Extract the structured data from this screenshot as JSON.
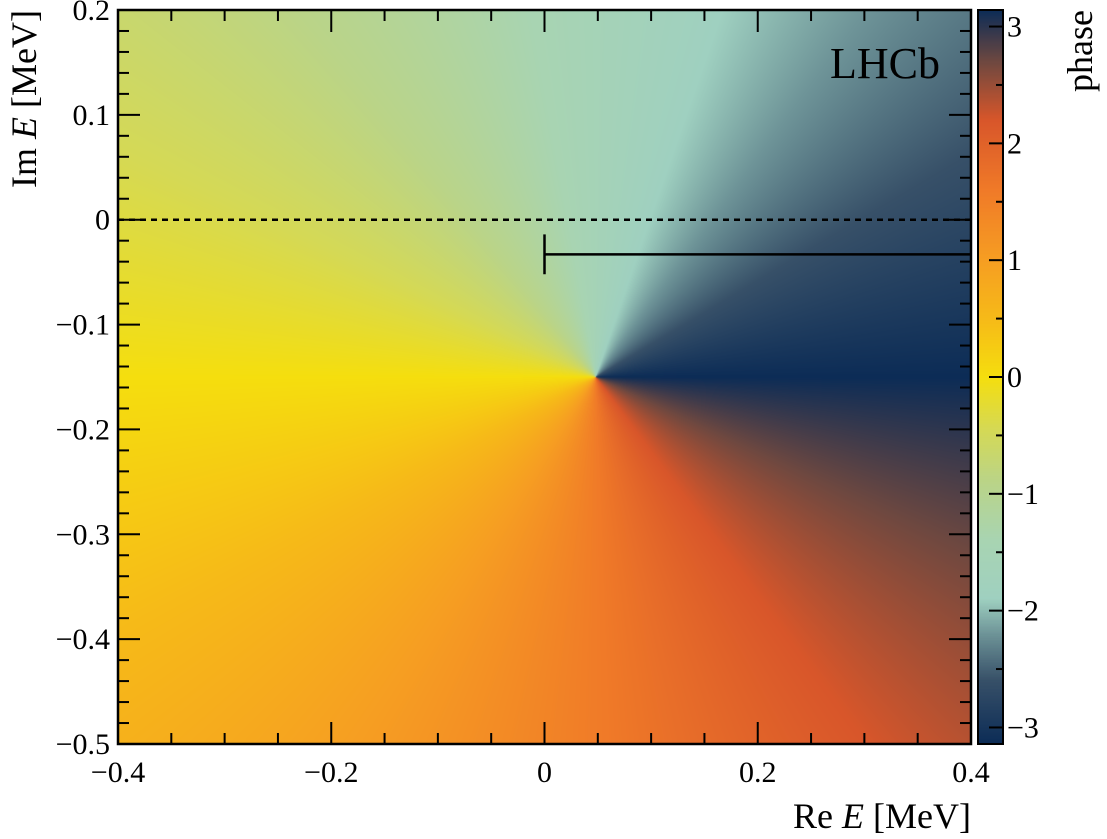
{
  "chart_data": {
    "type": "heatmap",
    "title": "",
    "annotation": "LHCb",
    "xlabel": {
      "prefix": "Re ",
      "var": "E",
      "unit": " [MeV]"
    },
    "ylabel": {
      "prefix": "Im ",
      "var": "E",
      "unit": " [MeV]"
    },
    "xlim": [
      -0.4,
      0.4
    ],
    "ylim": [
      -0.5,
      0.2
    ],
    "x_ticks": [
      -0.4,
      -0.2,
      0,
      0.2,
      0.4
    ],
    "x_tick_labels": [
      "−0.4",
      "−0.2",
      "0",
      "0.2",
      "0.4"
    ],
    "y_ticks": [
      -0.5,
      -0.4,
      -0.3,
      -0.2,
      -0.1,
      0,
      0.1,
      0.2
    ],
    "y_tick_labels": [
      "−0.5",
      "−0.4",
      "−0.3",
      "−0.2",
      "−0.1",
      "0",
      "0.1",
      "0.2"
    ],
    "colorbar": {
      "label": "phase",
      "range": [
        -3.14159,
        3.14159
      ],
      "ticks": [
        -3,
        -2,
        -1,
        0,
        1,
        2,
        3
      ],
      "tick_labels": [
        "−3",
        "−2",
        "−1",
        "0",
        "1",
        "2",
        "3"
      ],
      "colormap": [
        {
          "value": -3.14159,
          "color": "#0c2c56"
        },
        {
          "value": -2.6,
          "color": "#375068"
        },
        {
          "value": -2.2,
          "color": "#6e9498"
        },
        {
          "value": -1.9,
          "color": "#9fd0c0"
        },
        {
          "value": -1.4,
          "color": "#a8d4b2"
        },
        {
          "value": -0.9,
          "color": "#bad488"
        },
        {
          "value": -0.45,
          "color": "#d5d955"
        },
        {
          "value": 0.0,
          "color": "#f5de0e"
        },
        {
          "value": 0.5,
          "color": "#f6ba18"
        },
        {
          "value": 1.0,
          "color": "#f69e22"
        },
        {
          "value": 1.6,
          "color": "#f07a28"
        },
        {
          "value": 2.2,
          "color": "#d8562a"
        },
        {
          "value": 2.7,
          "color": "#6e4840"
        },
        {
          "value": 3.14159,
          "color": "#0c2c56"
        }
      ]
    },
    "pole": {
      "re": 0.048,
      "im": -0.15
    },
    "dashed_line": {
      "y": 0,
      "x_from": -0.4,
      "x_to": 0.4
    },
    "threshold_cut": {
      "x_from": 0.0,
      "x_to": 0.4,
      "y": -0.033,
      "tick_y": [
        -0.052,
        -0.014
      ]
    }
  }
}
